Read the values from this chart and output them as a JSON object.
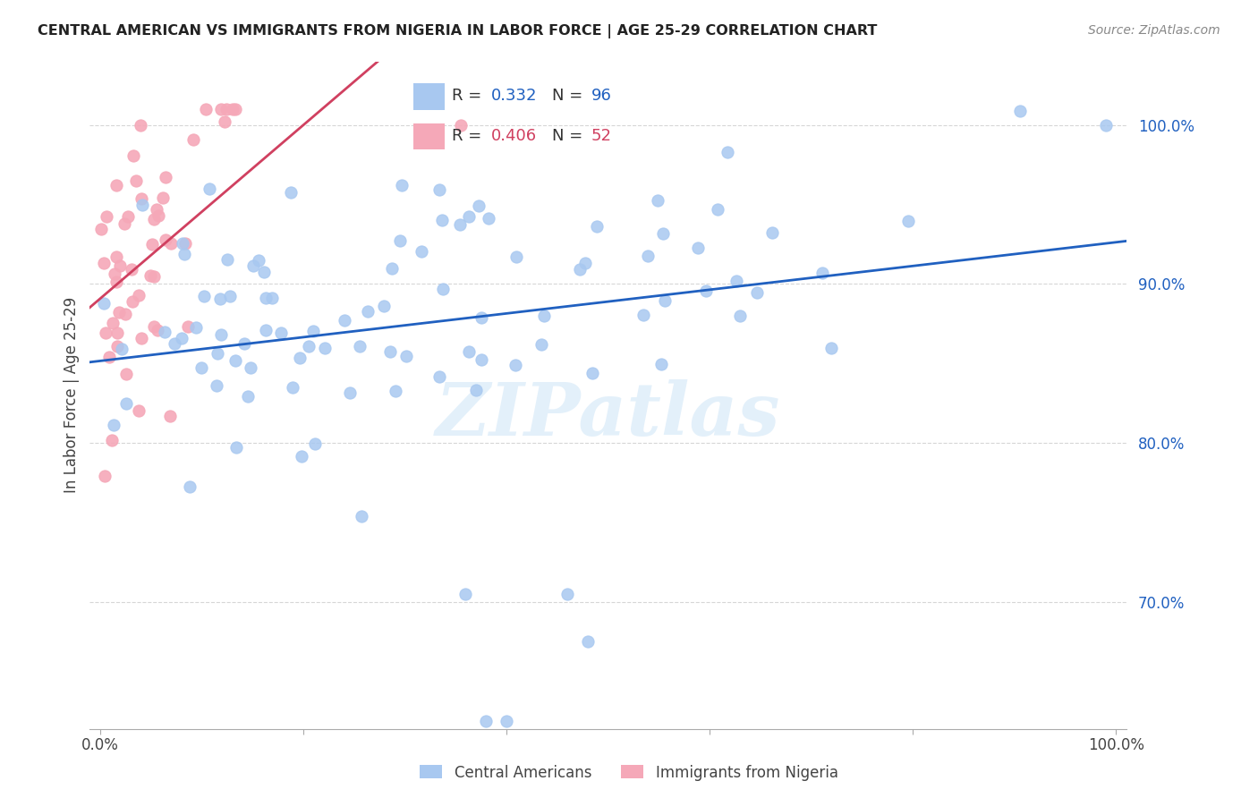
{
  "title": "CENTRAL AMERICAN VS IMMIGRANTS FROM NIGERIA IN LABOR FORCE | AGE 25-29 CORRELATION CHART",
  "source": "Source: ZipAtlas.com",
  "ylabel": "In Labor Force | Age 25-29",
  "y_tick_values": [
    0.7,
    0.8,
    0.9,
    1.0
  ],
  "y_tick_labels": [
    "70.0%",
    "80.0%",
    "90.0%",
    "100.0%"
  ],
  "xlim": [
    -0.01,
    1.01
  ],
  "ylim": [
    0.62,
    1.04
  ],
  "blue_R": "0.332",
  "blue_N": "96",
  "pink_R": "0.406",
  "pink_N": "52",
  "blue_color": "#A8C8F0",
  "pink_color": "#F5A8B8",
  "blue_line_color": "#2060C0",
  "pink_line_color": "#D04060",
  "watermark": "ZIPatlas",
  "blue_seed": 10,
  "pink_seed": 20
}
